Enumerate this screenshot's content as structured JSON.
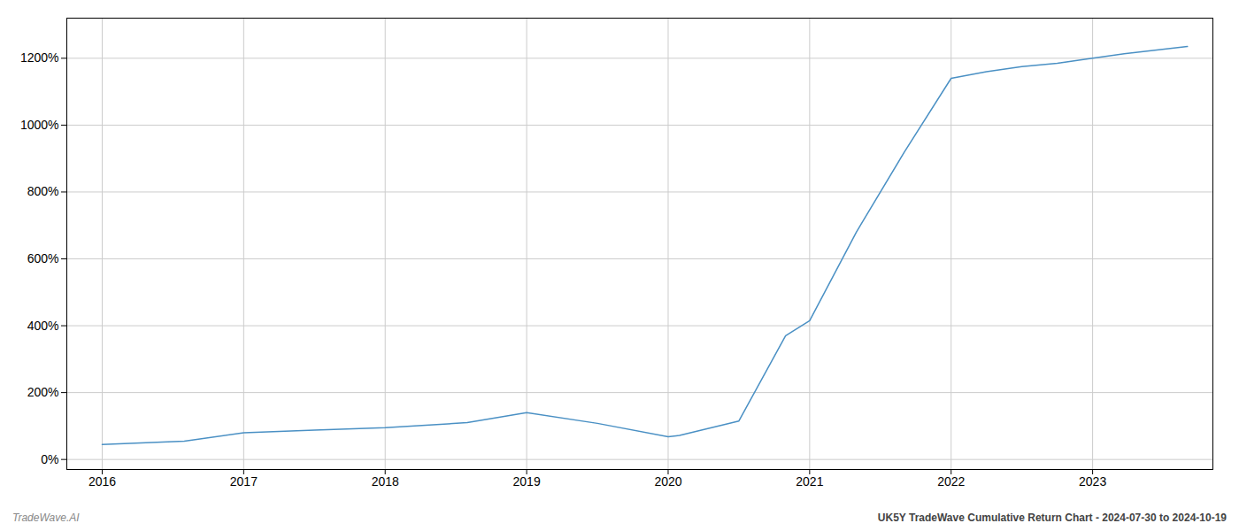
{
  "chart_data": {
    "type": "line",
    "x": [
      2016.0,
      2016.58,
      2017.0,
      2017.5,
      2018.0,
      2018.58,
      2019.0,
      2019.5,
      2020.0,
      2020.08,
      2020.5,
      2020.83,
      2021.0,
      2021.33,
      2021.67,
      2022.0,
      2022.25,
      2022.5,
      2022.75,
      2023.0,
      2023.25,
      2023.67
    ],
    "values": [
      45,
      55,
      80,
      88,
      95,
      110,
      140,
      108,
      68,
      72,
      115,
      370,
      415,
      680,
      920,
      1140,
      1160,
      1175,
      1185,
      1200,
      1215,
      1235
    ],
    "color": "#4a90c4",
    "xlim": [
      2015.75,
      2023.85
    ],
    "xticks": [
      2016,
      2017,
      2018,
      2019,
      2020,
      2021,
      2022,
      2023
    ],
    "ylim": [
      -30,
      1320
    ],
    "yticks": [
      {
        "value": 0,
        "label": "0%"
      },
      {
        "value": 200,
        "label": "200%"
      },
      {
        "value": 400,
        "label": "400%"
      },
      {
        "value": 600,
        "label": "600%"
      },
      {
        "value": 800,
        "label": "800%"
      },
      {
        "value": 1000,
        "label": "1000%"
      },
      {
        "value": 1200,
        "label": "1200%"
      }
    ],
    "grid": true,
    "annotations": [
      "TradeWave.AI",
      "UK5Y TradeWave Cumulative Return Chart - 2024-07-30 to 2024-10-19"
    ]
  }
}
